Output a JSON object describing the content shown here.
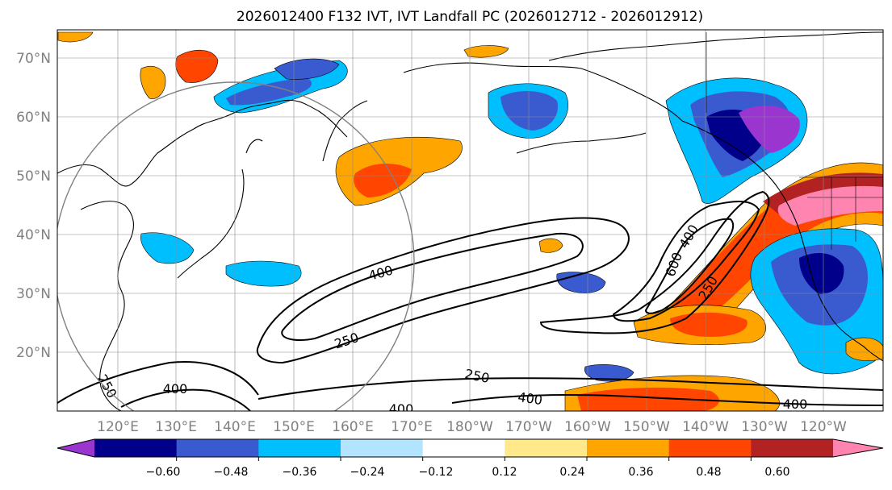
{
  "title": "2026012400 F132 IVT, IVT Landfall PC (2026012712 - 2026012912)",
  "map": {
    "lat_labels": [
      "70°N",
      "60°N",
      "50°N",
      "40°N",
      "30°N",
      "20°N"
    ],
    "lon_labels": [
      "120°E",
      "130°E",
      "140°E",
      "150°E",
      "160°E",
      "170°E",
      "180°W",
      "170°W",
      "160°W",
      "150°W",
      "140°W",
      "130°W",
      "120°W"
    ],
    "contour_levels": [
      "250",
      "400",
      "600"
    ],
    "contour_labels": [
      "400",
      "250",
      "250",
      "400",
      "400",
      "250",
      "600",
      "400",
      "250",
      "400",
      "400"
    ],
    "label_color": "#808080"
  },
  "colorbar": {
    "tick_labels": [
      "−0.60",
      "−0.48",
      "−0.36",
      "−0.24",
      "−0.12",
      "0.12",
      "0.24",
      "0.36",
      "0.48",
      "0.60"
    ],
    "colors": [
      "#9a35d0",
      "#00008b",
      "#3a5bd0",
      "#00bfff",
      "#b2e3ff",
      "#ffffff",
      "#ffe98a",
      "#ffa500",
      "#ff4500",
      "#b22222",
      "#ff85b0"
    ]
  }
}
